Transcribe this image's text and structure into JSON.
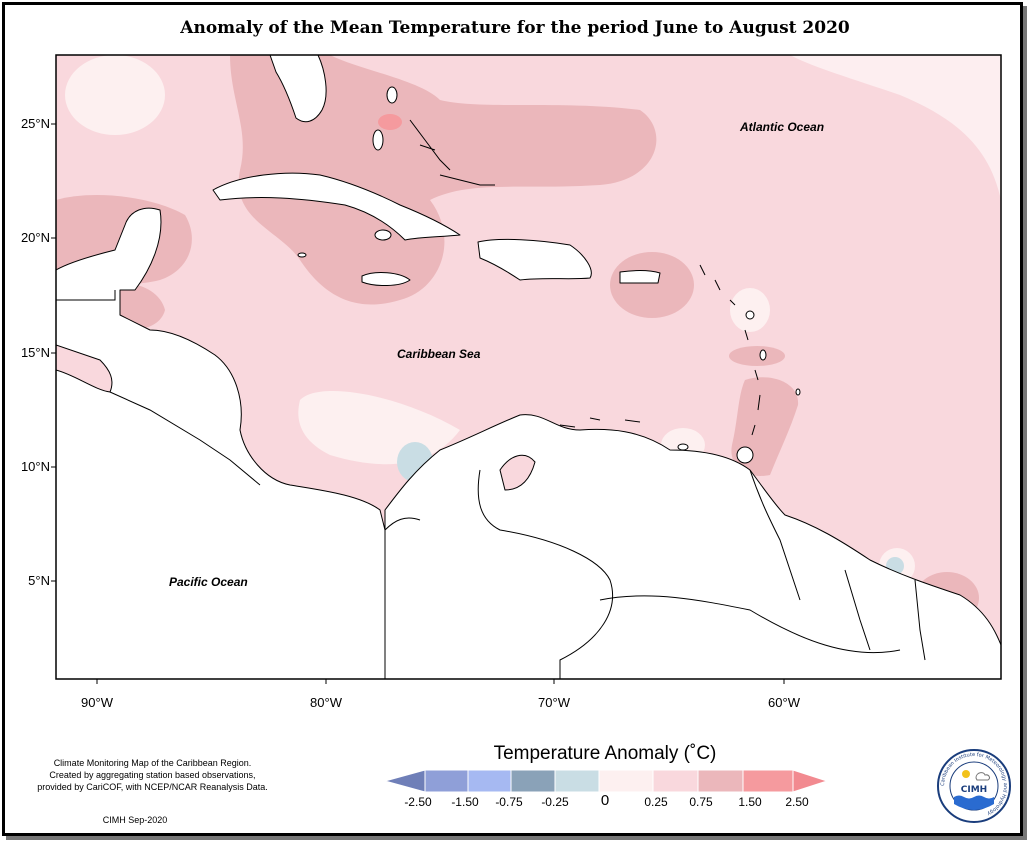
{
  "title": "Anomaly of the Mean Temperature for the period June to August 2020",
  "map_labels": {
    "atlantic": "Atlantic Ocean",
    "caribbean": "Caribbean Sea",
    "pacific": "Pacific Ocean"
  },
  "lat_ticks": [
    "25°N",
    "20°N",
    "15°N",
    "10°N",
    "5°N"
  ],
  "lon_ticks": [
    "90°W",
    "80°W",
    "70°W",
    "60°W"
  ],
  "footnote": {
    "line1": "Climate Monitoring Map of the Caribbean Region.",
    "line2": "Created by aggregating station based observations,",
    "line3": "provided by CariCOF, with NCEP/NCAR Reanalysis Data.",
    "credit": "CIMH Sep-2020"
  },
  "colorbar": {
    "title": "Temperature Anomaly (˚C)",
    "labels": [
      "-2.50",
      "-1.50",
      "-0.75",
      "-0.25",
      "0",
      "0.25",
      "0.75",
      "1.50",
      "2.50"
    ],
    "colors": [
      "#6f7fb8",
      "#8f9fd8",
      "#a6b9f2",
      "#8aa2b8",
      "#c9dde4",
      "#fdf0f0",
      "#f9d8dd",
      "#ebb7bb",
      "#f59a9e",
      "#f28a90"
    ]
  },
  "logo": {
    "acronym": "CIMH",
    "ring_text": "Caribbean Institute for Meteorology and Hydrology"
  }
}
